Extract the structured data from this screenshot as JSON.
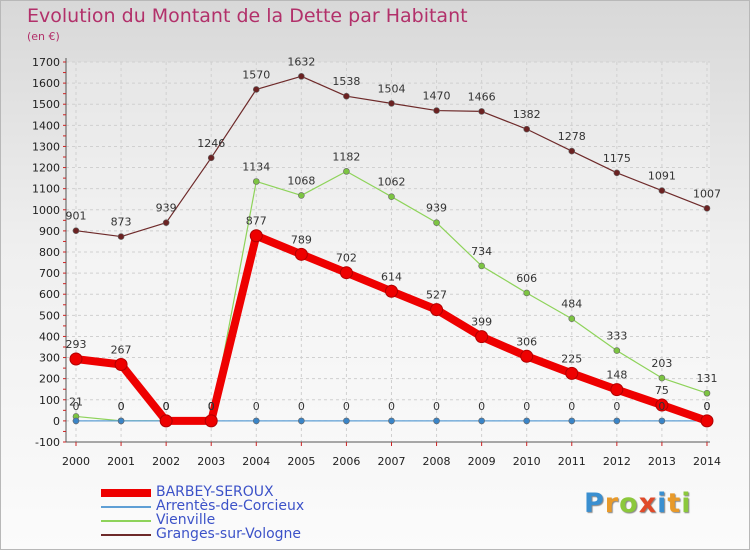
{
  "title": "Evolution du Montant de la Dette par Habitant",
  "unit": "(en €)",
  "logo": "Proxiti",
  "colors": {
    "title": "#b2306a",
    "legend_text": "#3c52c8",
    "axis_text": "#222222"
  },
  "chart_data": {
    "type": "line",
    "title": "Evolution du Montant de la Dette par Habitant",
    "ylabel": "(en €)",
    "xlabel": "",
    "x": [
      "2000",
      "2001",
      "2002",
      "2003",
      "2004",
      "2005",
      "2006",
      "2007",
      "2008",
      "2009",
      "2010",
      "2011",
      "2012",
      "2013",
      "2014"
    ],
    "ylim": [
      -100,
      1700
    ],
    "yticks": [
      -100,
      0,
      100,
      200,
      300,
      400,
      500,
      600,
      700,
      800,
      900,
      1000,
      1100,
      1200,
      1300,
      1400,
      1500,
      1600,
      1700
    ],
    "grid": true,
    "legend_position": "bottom-left",
    "series": [
      {
        "name": "BARBEY-SEROUX",
        "color": "#ee0000",
        "emphasis": true,
        "values": [
          293,
          267,
          0,
          0,
          877,
          789,
          702,
          614,
          527,
          399,
          306,
          225,
          148,
          75,
          0
        ],
        "labels": [
          "293",
          "267",
          "0",
          "0",
          "877",
          "789",
          "702",
          "614",
          "527",
          "399",
          "306",
          "225",
          "148",
          "75",
          "0"
        ]
      },
      {
        "name": "Arrentès-de-Corcieux",
        "color": "#5f9fd5",
        "marker": "#3a85c8",
        "values": [
          0,
          0,
          0,
          0,
          0,
          0,
          0,
          0,
          0,
          0,
          0,
          0,
          0,
          0,
          0
        ],
        "labels": [
          "0",
          "0",
          "0",
          "0",
          "0",
          "0",
          "0",
          "0",
          "0",
          "0",
          "0",
          "0",
          "0",
          "0",
          "0"
        ]
      },
      {
        "name": "Vienville",
        "color": "#8ed35a",
        "marker": "#7cc442",
        "values": [
          21,
          0,
          0,
          0,
          1134,
          1068,
          1182,
          1062,
          939,
          734,
          606,
          484,
          333,
          203,
          131
        ],
        "labels": [
          "21",
          "0",
          "0",
          "0",
          "1134",
          "1068",
          "1182",
          "1062",
          "939",
          "734",
          "606",
          "484",
          "333",
          "203",
          "131"
        ]
      },
      {
        "name": "Granges-sur-Vologne",
        "color": "#6e2a2a",
        "marker": "#6b2222",
        "values": [
          901,
          873,
          939,
          1246,
          1570,
          1632,
          1538,
          1504,
          1470,
          1466,
          1382,
          1278,
          1175,
          1091,
          1007
        ],
        "labels": [
          "901",
          "873",
          "939",
          "1246",
          "1570",
          "1632",
          "1538",
          "1504",
          "1470",
          "1466",
          "1382",
          "1278",
          "1175",
          "1091",
          "1007"
        ]
      }
    ]
  }
}
